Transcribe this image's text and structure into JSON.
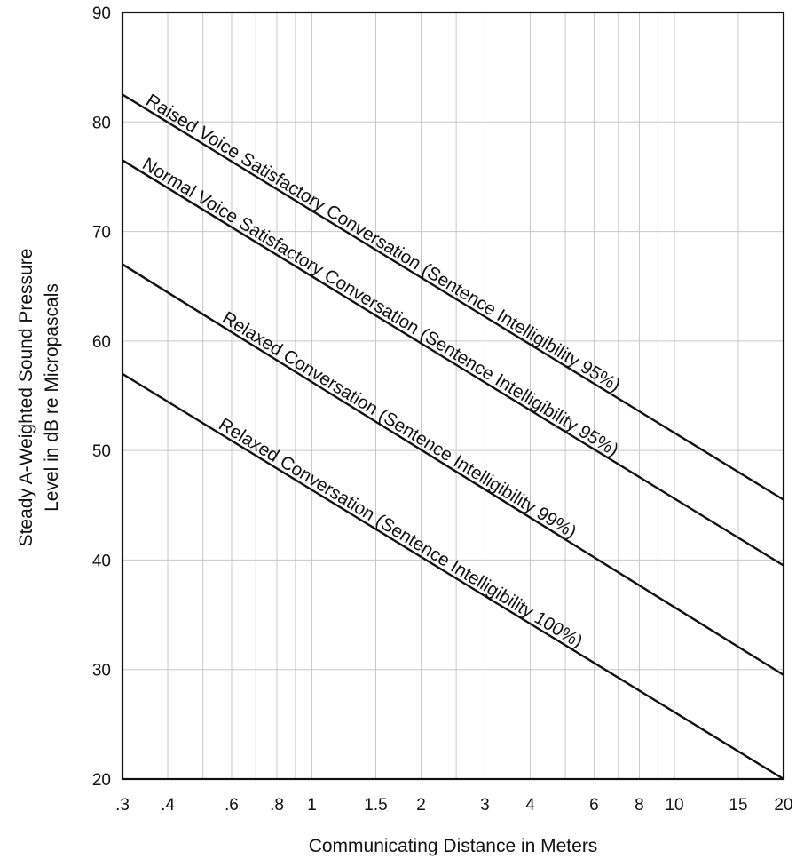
{
  "chart_data": {
    "type": "line",
    "xscale": "log",
    "xlabel": "Communicating Distance in Meters",
    "ylabel": [
      "Steady A-Weighted Sound Pressure",
      "Level in dB re Micropascals"
    ],
    "xlim": [
      0.3,
      20
    ],
    "ylim": [
      20,
      90
    ],
    "grid": true,
    "xticks": [
      {
        "value": 0.3,
        "label": ".3"
      },
      {
        "value": 0.4,
        "label": ".4"
      },
      {
        "value": 0.6,
        "label": ".6"
      },
      {
        "value": 0.8,
        "label": ".8"
      },
      {
        "value": 1,
        "label": "1"
      },
      {
        "value": 1.5,
        "label": "1.5"
      },
      {
        "value": 2,
        "label": "2"
      },
      {
        "value": 3,
        "label": "3"
      },
      {
        "value": 4,
        "label": "4"
      },
      {
        "value": 6,
        "label": "6"
      },
      {
        "value": 8,
        "label": "8"
      },
      {
        "value": 10,
        "label": "10"
      },
      {
        "value": 15,
        "label": "15"
      },
      {
        "value": 20,
        "label": "20"
      }
    ],
    "x_gridlines": [
      0.3,
      0.4,
      0.5,
      0.6,
      0.7,
      0.8,
      0.9,
      1,
      1.5,
      2,
      2.5,
      3,
      4,
      5,
      6,
      7,
      8,
      9,
      10,
      15,
      20
    ],
    "yticks": [
      20,
      30,
      40,
      50,
      60,
      70,
      80,
      90
    ],
    "series": [
      {
        "name": "Raised Voice Satisfactory Conversation (Sentence Intelligibility 95%)",
        "x": [
          0.3,
          20
        ],
        "y": [
          82.5,
          45.5
        ]
      },
      {
        "name": "Normal Voice Satisfactory Conversation (Sentence Intelligibility 95%)",
        "x": [
          0.3,
          20
        ],
        "y": [
          76.5,
          39.5
        ]
      },
      {
        "name": "Relaxed Conversation (Sentence Intelligibility 99%)",
        "x": [
          0.3,
          20
        ],
        "y": [
          67,
          29.5
        ]
      },
      {
        "name": "Relaxed Conversation (Sentence Intelligibility 100%)",
        "x": [
          0.3,
          20
        ],
        "y": [
          57,
          20
        ]
      }
    ]
  }
}
